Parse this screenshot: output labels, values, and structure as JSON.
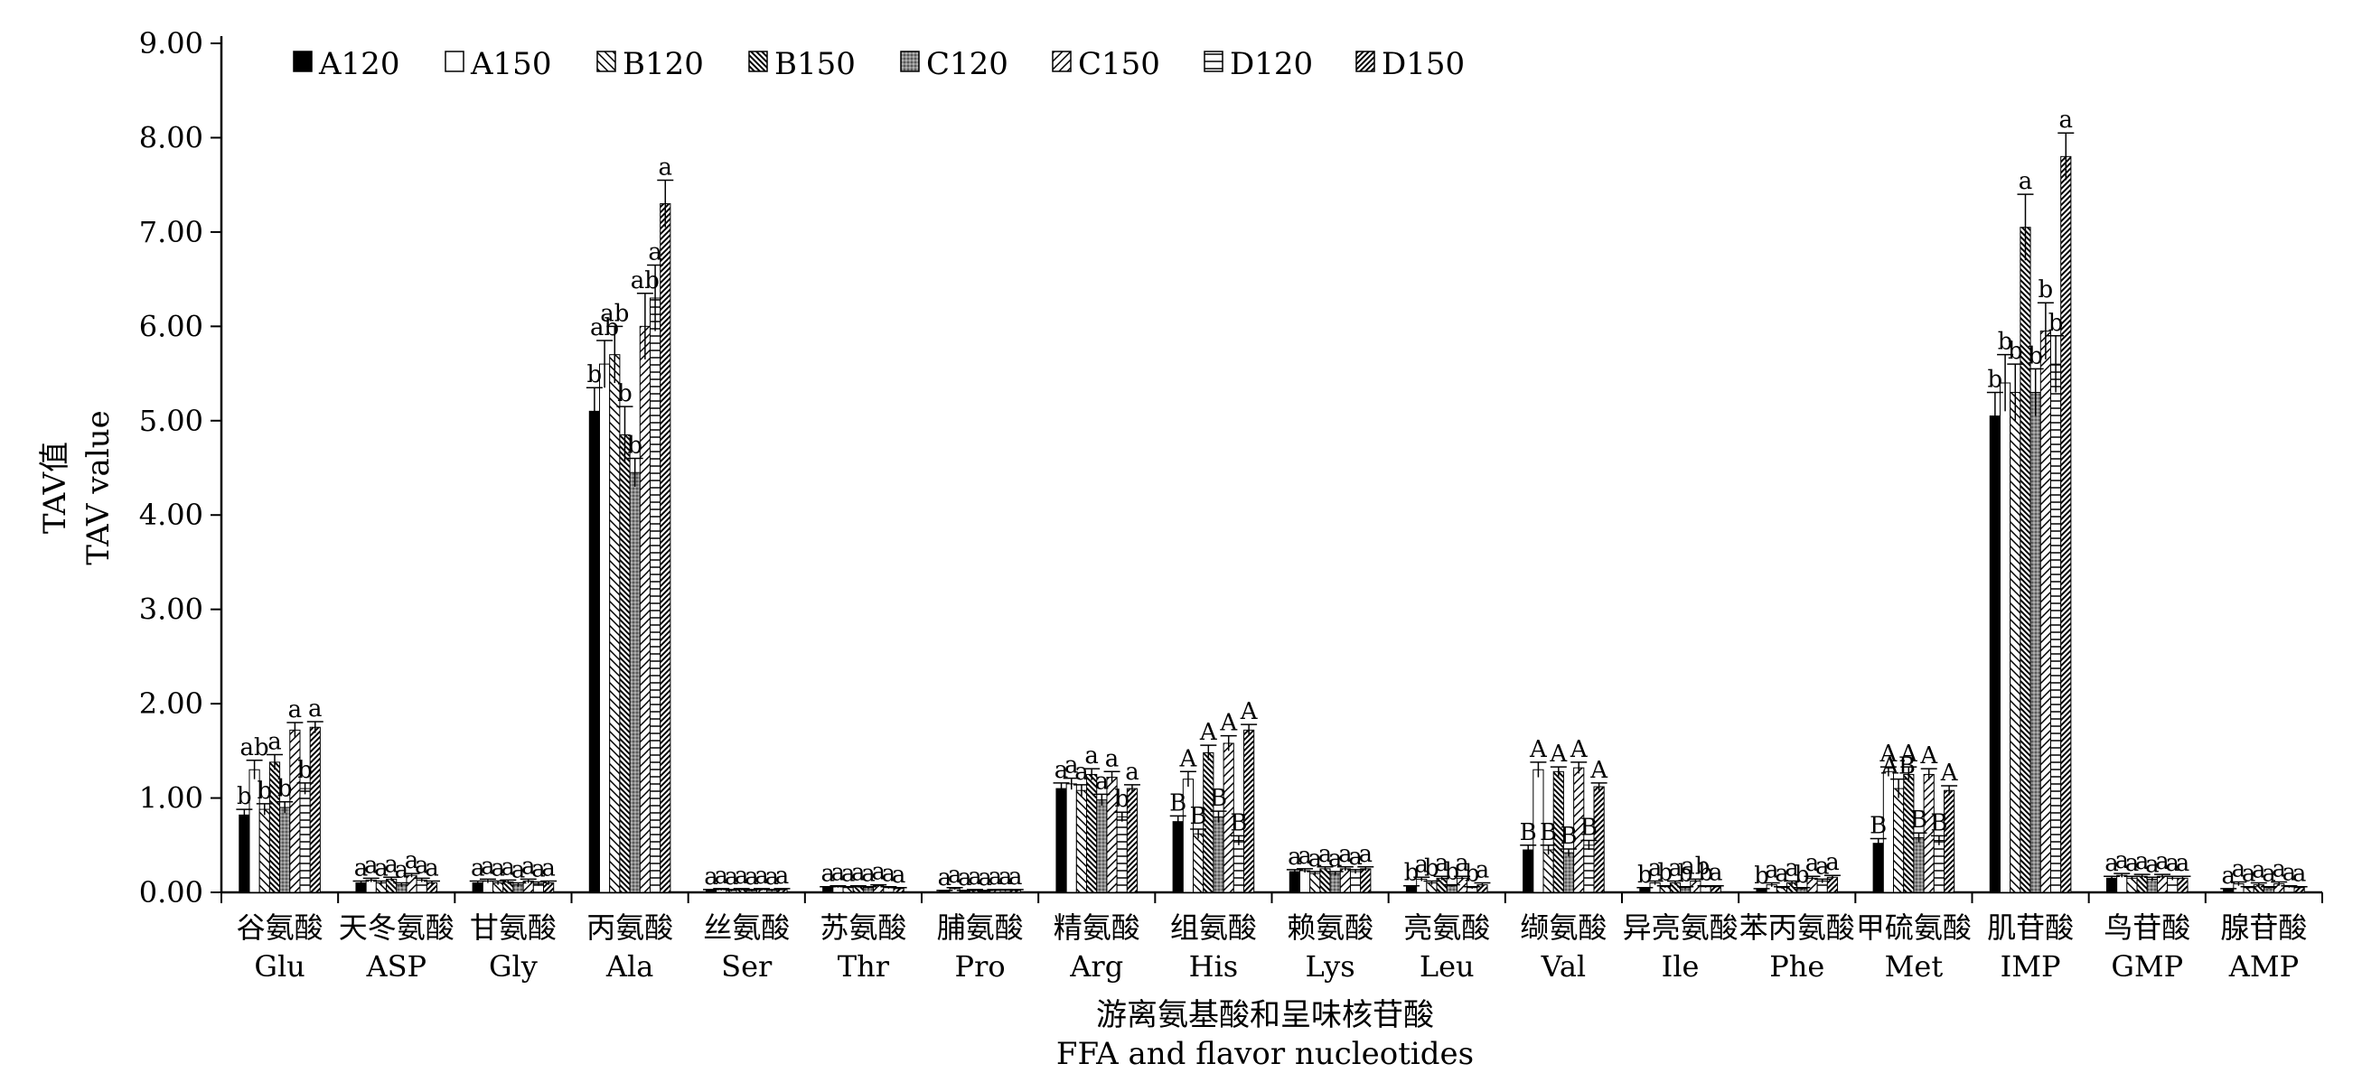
{
  "chart_data": {
    "type": "bar",
    "title": "",
    "ylabel_cn": "TAV值",
    "ylabel_en": "TAV value",
    "xlabel_cn": "游离氨基酸和呈味核苷酸",
    "xlabel_en": "FFA and flavor nucleotides",
    "ylim": [
      0,
      9
    ],
    "yticks": [
      "0.00",
      "1.00",
      "2.00",
      "3.00",
      "4.00",
      "5.00",
      "6.00",
      "7.00",
      "8.00",
      "9.00"
    ],
    "legend_position": "top-left",
    "categories": [
      {
        "cn": "谷氨酸",
        "en": "Glu"
      },
      {
        "cn": "天冬氨酸",
        "en": "ASP"
      },
      {
        "cn": "甘氨酸",
        "en": "Gly"
      },
      {
        "cn": "丙氨酸",
        "en": "Ala"
      },
      {
        "cn": "丝氨酸",
        "en": "Ser"
      },
      {
        "cn": "苏氨酸",
        "en": "Thr"
      },
      {
        "cn": "脯氨酸",
        "en": "Pro"
      },
      {
        "cn": "精氨酸",
        "en": "Arg"
      },
      {
        "cn": "组氨酸",
        "en": "His"
      },
      {
        "cn": "赖氨酸",
        "en": "Lys"
      },
      {
        "cn": "亮氨酸",
        "en": "Leu"
      },
      {
        "cn": "缬氨酸",
        "en": "Val"
      },
      {
        "cn": "异亮氨酸",
        "en": "Ile"
      },
      {
        "cn": "苯丙氨酸",
        "en": "Phe"
      },
      {
        "cn": "甲硫氨酸",
        "en": "Met"
      },
      {
        "cn": "肌苷酸",
        "en": "IMP"
      },
      {
        "cn": "鸟苷酸",
        "en": "GMP"
      },
      {
        "cn": "腺苷酸",
        "en": "AMP"
      }
    ],
    "series": [
      {
        "name": "A120",
        "pattern": "solid",
        "values": [
          0.82,
          0.1,
          0.1,
          5.1,
          0.02,
          0.05,
          0.01,
          1.1,
          0.75,
          0.22,
          0.06,
          0.45,
          0.04,
          0.03,
          0.52,
          5.05,
          0.15,
          0.03
        ],
        "errors": [
          0.06,
          0.02,
          0.02,
          0.25,
          0.01,
          0.01,
          0.01,
          0.06,
          0.06,
          0.02,
          0.01,
          0.05,
          0.01,
          0.01,
          0.05,
          0.25,
          0.02,
          0.01
        ],
        "labels": [
          "b",
          "a",
          "a",
          "b",
          "a",
          "a",
          "a",
          "a",
          "B",
          "a",
          "b",
          "B",
          "b",
          "b",
          "B",
          "b",
          "a",
          "a"
        ]
      },
      {
        "name": "A150",
        "pattern": "open",
        "values": [
          1.3,
          0.13,
          0.12,
          5.6,
          0.03,
          0.06,
          0.04,
          1.15,
          1.2,
          0.23,
          0.14,
          1.3,
          0.1,
          0.08,
          1.28,
          5.4,
          0.18,
          0.09
        ],
        "errors": [
          0.1,
          0.02,
          0.02,
          0.25,
          0.01,
          0.01,
          0.01,
          0.06,
          0.08,
          0.02,
          0.02,
          0.08,
          0.02,
          0.02,
          0.05,
          0.3,
          0.02,
          0.02
        ],
        "labels": [
          "ab",
          "a",
          "a",
          "ab",
          "a",
          "a",
          "a",
          "a",
          "A",
          "a",
          "a",
          "A",
          "a",
          "a",
          "A",
          "b",
          "a",
          "a"
        ]
      },
      {
        "name": "B120",
        "pattern": "diag-down",
        "values": [
          0.88,
          0.1,
          0.1,
          5.7,
          0.02,
          0.05,
          0.01,
          1.08,
          0.62,
          0.2,
          0.1,
          0.45,
          0.06,
          0.05,
          1.1,
          5.3,
          0.15,
          0.05
        ],
        "errors": [
          0.06,
          0.02,
          0.02,
          0.3,
          0.01,
          0.01,
          0.01,
          0.06,
          0.05,
          0.02,
          0.02,
          0.05,
          0.01,
          0.01,
          0.1,
          0.3,
          0.02,
          0.01
        ],
        "labels": [
          "b",
          "a",
          "a",
          "ab",
          "a",
          "a",
          "a",
          "a",
          "B",
          "a",
          "b",
          "B",
          "b",
          "a",
          "AB",
          "b",
          "a",
          "a"
        ]
      },
      {
        "name": "B150",
        "pattern": "diag-down-dense",
        "values": [
          1.38,
          0.14,
          0.11,
          4.85,
          0.03,
          0.06,
          0.02,
          1.25,
          1.48,
          0.25,
          0.15,
          1.28,
          0.1,
          0.1,
          1.25,
          7.05,
          0.17,
          0.08
        ],
        "errors": [
          0.08,
          0.02,
          0.02,
          0.3,
          0.01,
          0.01,
          0.01,
          0.06,
          0.08,
          0.02,
          0.02,
          0.05,
          0.02,
          0.02,
          0.08,
          0.35,
          0.02,
          0.02
        ],
        "labels": [
          "a",
          "a",
          "a",
          "b",
          "a",
          "a",
          "a",
          "a",
          "A",
          "a",
          "a",
          "A",
          "a",
          "a",
          "A",
          "a",
          "a",
          "a"
        ]
      },
      {
        "name": "C120",
        "pattern": "gray",
        "values": [
          0.9,
          0.08,
          0.08,
          4.45,
          0.02,
          0.05,
          0.01,
          0.98,
          0.8,
          0.2,
          0.07,
          0.42,
          0.05,
          0.04,
          0.58,
          5.3,
          0.14,
          0.05
        ],
        "errors": [
          0.06,
          0.02,
          0.02,
          0.15,
          0.01,
          0.01,
          0.01,
          0.06,
          0.06,
          0.02,
          0.01,
          0.04,
          0.01,
          0.01,
          0.05,
          0.25,
          0.02,
          0.01
        ],
        "labels": [
          "b",
          "a",
          "a",
          "b",
          "a",
          "a",
          "a",
          "a",
          "B",
          "a",
          "b",
          "B",
          "b",
          "b",
          "B",
          "b",
          "a",
          "a"
        ]
      },
      {
        "name": "C150",
        "pattern": "diag-up",
        "values": [
          1.72,
          0.18,
          0.12,
          6.0,
          0.03,
          0.07,
          0.02,
          1.22,
          1.58,
          0.25,
          0.15,
          1.32,
          0.12,
          0.15,
          1.25,
          5.95,
          0.17,
          0.09
        ],
        "errors": [
          0.08,
          0.02,
          0.02,
          0.35,
          0.01,
          0.01,
          0.01,
          0.06,
          0.08,
          0.02,
          0.02,
          0.06,
          0.02,
          0.02,
          0.06,
          0.3,
          0.02,
          0.02
        ],
        "labels": [
          "a",
          "a",
          "a",
          "ab",
          "a",
          "a",
          "a",
          "a",
          "A",
          "a",
          "a",
          "A",
          "ab",
          "a",
          "A",
          "b",
          "a",
          "a"
        ]
      },
      {
        "name": "D120",
        "pattern": "horiz",
        "values": [
          1.1,
          0.13,
          0.09,
          6.3,
          0.02,
          0.05,
          0.02,
          0.8,
          0.55,
          0.22,
          0.05,
          0.5,
          0.06,
          0.12,
          0.55,
          5.6,
          0.15,
          0.06
        ],
        "errors": [
          0.06,
          0.02,
          0.02,
          0.35,
          0.01,
          0.01,
          0.01,
          0.05,
          0.05,
          0.02,
          0.01,
          0.05,
          0.01,
          0.02,
          0.05,
          0.3,
          0.02,
          0.01
        ],
        "labels": [
          "b",
          "a",
          "a",
          "a",
          "a",
          "a",
          "a",
          "b",
          "B",
          "a",
          "b",
          "B",
          "b",
          "a",
          "B",
          "b",
          "a",
          "a"
        ]
      },
      {
        "name": "D150",
        "pattern": "diag-up-dense",
        "values": [
          1.75,
          0.1,
          0.1,
          7.3,
          0.03,
          0.04,
          0.02,
          1.1,
          1.72,
          0.25,
          0.08,
          1.12,
          0.06,
          0.16,
          1.08,
          7.8,
          0.15,
          0.05
        ],
        "errors": [
          0.06,
          0.02,
          0.02,
          0.25,
          0.01,
          0.01,
          0.01,
          0.04,
          0.06,
          0.02,
          0.02,
          0.04,
          0.01,
          0.02,
          0.05,
          0.25,
          0.02,
          0.01
        ],
        "labels": [
          "a",
          "a",
          "a",
          "a",
          "a",
          "a",
          "a",
          "a",
          "A",
          "a",
          "a",
          "A",
          "a",
          "a",
          "A",
          "a",
          "a",
          "a"
        ]
      }
    ]
  }
}
